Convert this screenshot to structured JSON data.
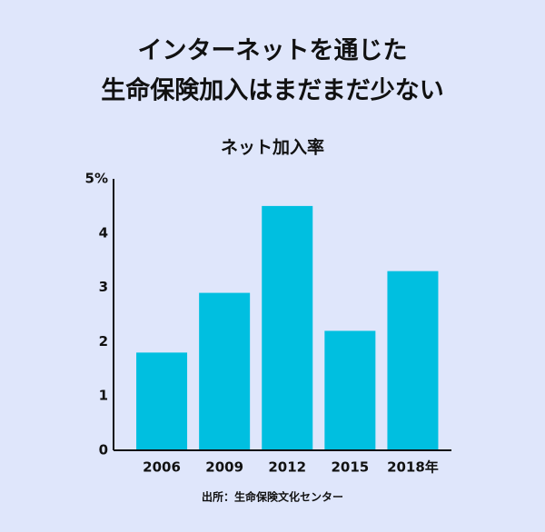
{
  "chart_data": {
    "type": "bar",
    "title": [
      "インターネットを通じた",
      "生命保険加入はまだまだ少ない"
    ],
    "subtitle": "ネット加入率",
    "source": "出所：生命保険文化センター",
    "categories": [
      "2006",
      "2009",
      "2012",
      "2015",
      "2018年"
    ],
    "values": [
      1.8,
      2.9,
      4.5,
      2.2,
      3.3
    ],
    "color": "#00bfe0",
    "ylim": [
      0,
      5
    ],
    "yticks": [
      0,
      1,
      2,
      3,
      4,
      {
        "value": 5,
        "label": "5%"
      }
    ],
    "grid": false
  }
}
